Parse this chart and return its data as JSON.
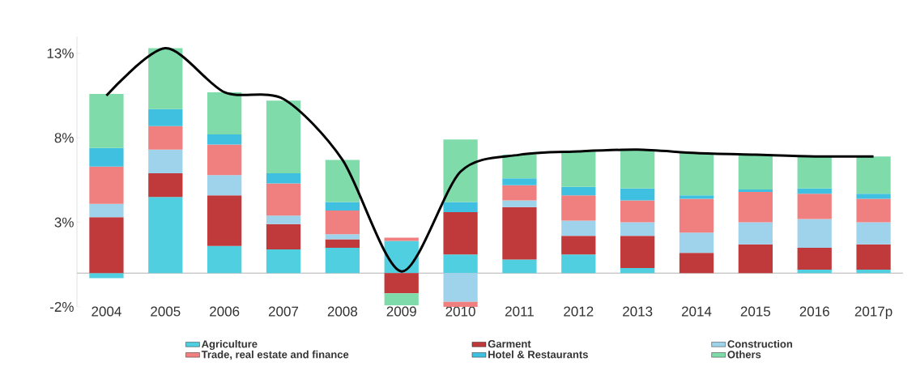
{
  "chart_data": {
    "type": "bar",
    "stacked": true,
    "legend": "bottom",
    "categories": [
      "2004",
      "2005",
      "2006",
      "2007",
      "2008",
      "2009",
      "2010",
      "2011",
      "2012",
      "2013",
      "2014",
      "2015",
      "2016",
      "2017p"
    ],
    "ylim": [
      -2,
      14
    ],
    "yticks": [
      {
        "value": -2,
        "label": "-2%"
      },
      {
        "value": 3,
        "label": "3%"
      },
      {
        "value": 8,
        "label": "8%"
      },
      {
        "value": 13,
        "label": "13%"
      }
    ],
    "series": [
      {
        "name": "Agriculture",
        "color": "#4fcfe0",
        "values": [
          -0.3,
          4.5,
          1.6,
          1.4,
          1.5,
          1.9,
          1.1,
          0.8,
          1.1,
          0.3,
          0,
          0,
          0.2,
          0.2
        ]
      },
      {
        "name": "Garment",
        "color": "#c0393b",
        "values": [
          3.3,
          1.4,
          3.0,
          1.5,
          0.5,
          -1.2,
          2.5,
          3.1,
          1.1,
          1.9,
          1.2,
          1.7,
          1.3,
          1.5
        ]
      },
      {
        "name": "Construction",
        "color": "#9fd3ec",
        "values": [
          0.8,
          1.4,
          1.2,
          0.5,
          0.3,
          0,
          -1.7,
          0.4,
          0.9,
          0.8,
          1.2,
          1.3,
          1.7,
          1.3
        ]
      },
      {
        "name": "Trade, real estate and finance",
        "color": "#f08080",
        "values": [
          2.2,
          1.4,
          1.8,
          1.9,
          1.4,
          0.2,
          -0.3,
          0.9,
          1.5,
          1.3,
          2.0,
          1.8,
          1.5,
          1.4
        ]
      },
      {
        "name": "Hotel & Restaurants",
        "color": "#3fc0e0",
        "values": [
          1.1,
          1.0,
          0.6,
          0.6,
          0.5,
          0,
          0.6,
          0.4,
          0.5,
          0.7,
          0.2,
          0.15,
          0.3,
          0.3
        ]
      },
      {
        "name": "Others",
        "color": "#7fdcaa",
        "values": [
          3.2,
          3.6,
          2.5,
          4.3,
          2.5,
          -0.7,
          3.7,
          1.4,
          2.1,
          2.3,
          2.5,
          2.1,
          1.9,
          2.2
        ]
      },
      {
        "type": "line",
        "color": "#000000",
        "values": [
          10.5,
          13.3,
          10.7,
          10.3,
          6.7,
          0.1,
          6.0,
          7.0,
          7.2,
          7.3,
          7.1,
          7.0,
          6.9,
          6.9
        ]
      }
    ]
  }
}
